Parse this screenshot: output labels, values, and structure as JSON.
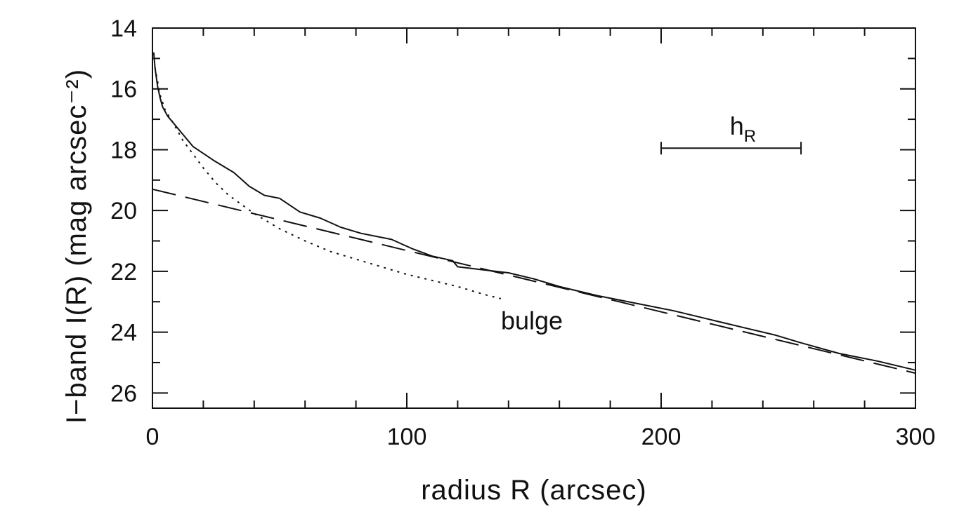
{
  "chart_data": {
    "type": "line",
    "xlabel": "radius R (arcsec)",
    "ylabel": "I−band I(R) (mag arcsec⁻²)",
    "xlim": [
      0,
      300
    ],
    "ylim": [
      26.5,
      14
    ],
    "y_inverted": true,
    "grid": false,
    "xticks": [
      {
        "value": 0,
        "label": "0"
      },
      {
        "value": 100,
        "label": "100"
      },
      {
        "value": 200,
        "label": "200"
      },
      {
        "value": 300,
        "label": "300"
      }
    ],
    "yticks": [
      {
        "value": 14,
        "label": "14"
      },
      {
        "value": 16,
        "label": "16"
      },
      {
        "value": 18,
        "label": "18"
      },
      {
        "value": 20,
        "label": "20"
      },
      {
        "value": 22,
        "label": "22"
      },
      {
        "value": 24,
        "label": "24"
      },
      {
        "value": 26,
        "label": "26"
      }
    ],
    "x_minor_step": 20,
    "y_minor_step": 1,
    "series": [
      {
        "style": "solid",
        "x": [
          0.5,
          1,
          2,
          3,
          4,
          6,
          10,
          16,
          24,
          32,
          38,
          44,
          50,
          58,
          66,
          74,
          82,
          94,
          102,
          110,
          118,
          120,
          130,
          140,
          150,
          160,
          175,
          190,
          205,
          220,
          235,
          245,
          255,
          270,
          285,
          300
        ],
        "y": [
          14.8,
          15.3,
          15.9,
          16.3,
          16.6,
          16.9,
          17.3,
          17.9,
          18.35,
          18.75,
          19.2,
          19.5,
          19.6,
          20.05,
          20.25,
          20.55,
          20.75,
          20.95,
          21.25,
          21.5,
          21.65,
          21.85,
          21.95,
          22.05,
          22.25,
          22.5,
          22.8,
          23.05,
          23.3,
          23.6,
          23.9,
          24.1,
          24.35,
          24.7,
          24.95,
          25.25
        ]
      },
      {
        "style": "dashed",
        "x": [
          0,
          300
        ],
        "y": [
          19.3,
          25.35
        ]
      },
      {
        "style": "dotted",
        "x": [
          1,
          3,
          5,
          8,
          12,
          16,
          20,
          25,
          30,
          35,
          40,
          50,
          60,
          70,
          80,
          90,
          100,
          110,
          120,
          130,
          137
        ],
        "y": [
          15.3,
          16.2,
          16.7,
          17.1,
          17.7,
          18.15,
          18.6,
          19.1,
          19.5,
          19.8,
          20.1,
          20.6,
          21.0,
          21.35,
          21.6,
          21.85,
          22.1,
          22.3,
          22.5,
          22.75,
          22.9
        ]
      }
    ],
    "annotations": [
      {
        "text": "bulge",
        "x": 137,
        "y": 23.9
      },
      {
        "text": "h",
        "subscript": "R",
        "x": 227,
        "y": 17.5
      }
    ],
    "scale_bar": {
      "x_start": 200,
      "x_end": 255,
      "y": 17.95
    }
  }
}
